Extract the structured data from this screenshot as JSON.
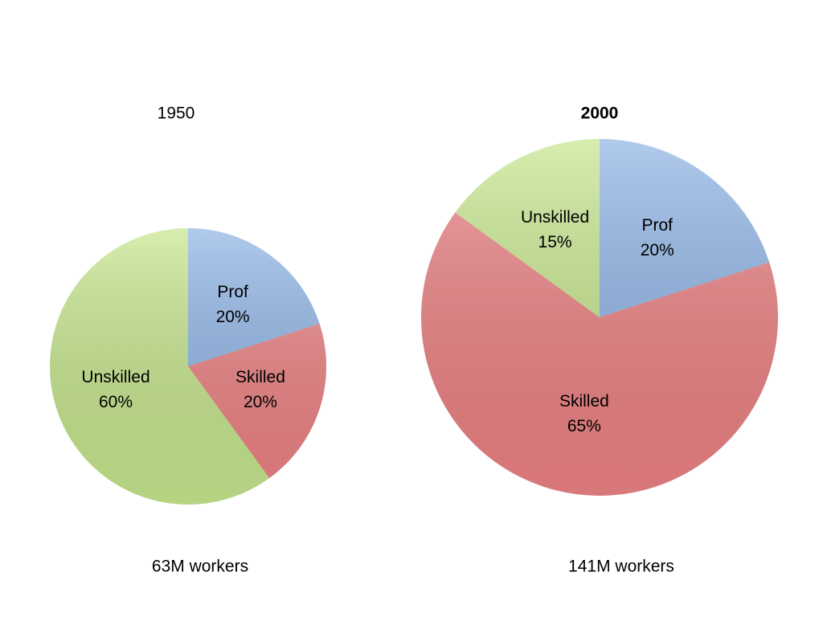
{
  "chart_data": [
    {
      "type": "pie",
      "title": "1950",
      "categories": [
        "Prof",
        "Skilled",
        "Unskilled"
      ],
      "values": [
        20,
        20,
        60
      ],
      "value_labels": [
        "20%",
        "20%",
        "60%"
      ],
      "colors": [
        "#8fb4e6",
        "#ec8284",
        "#c6e68e"
      ],
      "caption": "63M workers"
    },
    {
      "type": "pie",
      "title": "2000",
      "categories": [
        "Prof",
        "Skilled",
        "Unskilled"
      ],
      "values": [
        20,
        65,
        15
      ],
      "value_labels": [
        "20%",
        "65%",
        "15%"
      ],
      "colors": [
        "#8fb4e6",
        "#ec8284",
        "#c6e68e"
      ],
      "caption": "141M workers"
    }
  ]
}
